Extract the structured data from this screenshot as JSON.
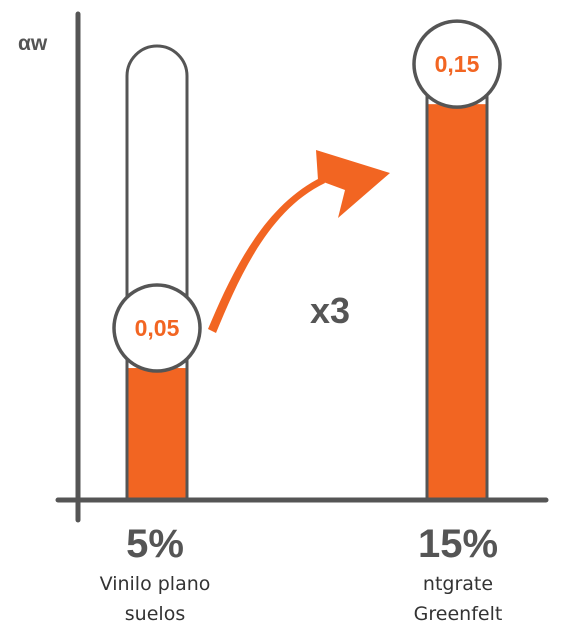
{
  "chart_data": {
    "type": "bar",
    "ylabel": "αw",
    "ylim": [
      0,
      0.18
    ],
    "categories": [
      {
        "percent": "5%",
        "label_lines": [
          "Vinilo plano",
          "suelos"
        ]
      },
      {
        "percent": "15%",
        "label_lines": [
          "ntgrate",
          "Greenfelt"
        ]
      }
    ],
    "values": [
      0.05,
      0.15
    ],
    "value_labels": [
      "0,05",
      "0,15"
    ],
    "annotation": "x3",
    "grid": false,
    "legend": "none"
  },
  "colors": {
    "accent": "#f26522",
    "axis": "#555555",
    "bar_outline": "#555555",
    "text_dark": "#333333"
  },
  "icons": {
    "arrow": "curved-arrow-icon"
  }
}
